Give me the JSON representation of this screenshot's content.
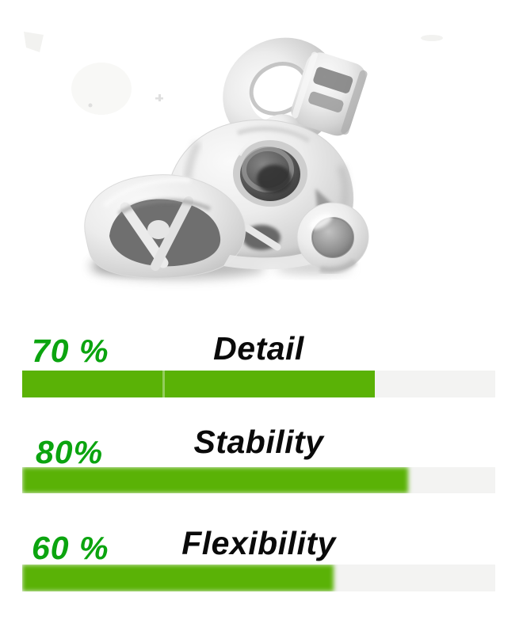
{
  "page": {
    "background": "#ffffff"
  },
  "colors": {
    "bar_green": "#5ab206",
    "text_green": "#0ba40f",
    "label_ink": "#0a0a0a",
    "track_grey": "#f3f3f2"
  },
  "photo": {
    "alt": "White 3D-printed tri-lobed mechanical part photographed on a white background with a soft shadow"
  },
  "stats": {
    "rows": [
      {
        "percent_label": "70 %",
        "name": "Detail",
        "value": 70,
        "fill_pct": 74.5
      },
      {
        "percent_label": "80%",
        "name": "Stability",
        "value": 80,
        "fill_pct": 81.6
      },
      {
        "percent_label": "60 %",
        "name": "Flexibility",
        "value": 60,
        "fill_pct": 65.8
      }
    ]
  },
  "chart_data": {
    "type": "bar",
    "orientation": "horizontal",
    "categories": [
      "Detail",
      "Stability",
      "Flexibility"
    ],
    "values": [
      70,
      80,
      60
    ],
    "value_suffix": "%",
    "title": "",
    "xlabel": "",
    "ylabel": "",
    "xlim": [
      0,
      100
    ],
    "grid": false,
    "legend": false,
    "bar_color": "#5ab206",
    "track_color": "#f3f3f2"
  }
}
